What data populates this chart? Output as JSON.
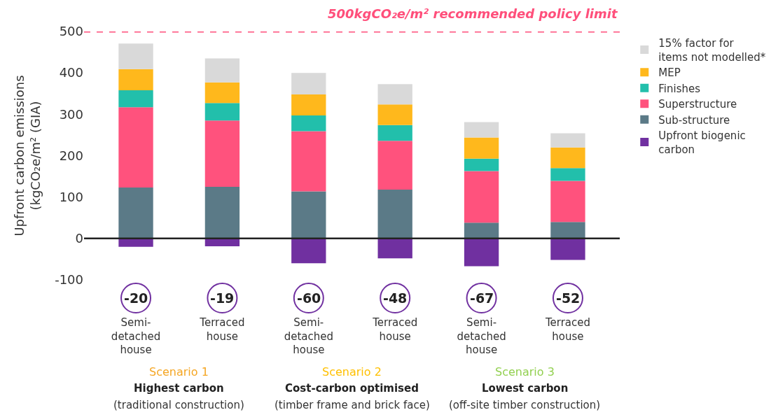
{
  "chart_data": {
    "type": "bar",
    "stacked": true,
    "categories": [
      "Semi-\ndetached\nhouse",
      "Terraced\nhouse",
      "Semi-\ndetached\nhouse",
      "Terraced\nhouse",
      "Semi-\ndetached\nhouse",
      "Terraced\nhouse"
    ],
    "ylabel": "Upfront carbon emissions\n(kgCO₂e/m² (GIA)",
    "ylim": [
      -100,
      500
    ],
    "yticks": [
      -100,
      0,
      100,
      200,
      300,
      400,
      500
    ],
    "series": [
      {
        "name": "Upfront biogenic\ncarbon",
        "color": "#7030a0",
        "values": [
          -20,
          -19,
          -60,
          -48,
          -67,
          -52
        ],
        "value_labels": [
          "-20",
          "-19",
          "-60",
          "-48",
          "-67",
          "-52"
        ]
      },
      {
        "name": "Sub-structure",
        "color": "#5b7a87",
        "values": [
          123,
          125,
          114,
          118,
          38,
          40
        ]
      },
      {
        "name": "Superstructure",
        "color": "#ff527d",
        "values": [
          194,
          160,
          145,
          118,
          125,
          99
        ]
      },
      {
        "name": "Finishes",
        "color": "#22bfab",
        "values": [
          41,
          42,
          38,
          38,
          30,
          31
        ]
      },
      {
        "name": "MEP",
        "color": "#ffb81c",
        "values": [
          51,
          50,
          51,
          50,
          51,
          50
        ]
      },
      {
        "name": "15% factor for\nitems not modelled*",
        "color": "#d9d9d9",
        "values": [
          62,
          58,
          52,
          49,
          37,
          34
        ]
      }
    ],
    "ref_lines": [
      {
        "axis": "y",
        "value": 500,
        "label": "500kgCO₂e/m² recommended policy limit",
        "color": "#ff4f7b",
        "line_style": "dashed"
      }
    ],
    "annotations": [
      "Scenario 1",
      "Highest carbon",
      "(traditional construction)",
      "Scenario 2",
      "Cost-carbon optimised",
      "(timber frame and brick face)",
      "Scenario 3",
      "Lowest carbon",
      "(off-site timber construction)"
    ],
    "legend": "right"
  }
}
